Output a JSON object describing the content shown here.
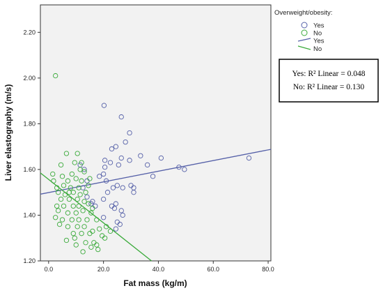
{
  "chart_data": {
    "type": "scatter",
    "xlabel": "Fat mass (kg/m)",
    "ylabel": "Liver elastography (m/s)",
    "xlim": [
      -3,
      81
    ],
    "ylim": [
      1.2,
      2.32
    ],
    "x_ticks": [
      "0.0",
      "20.0",
      "40.0",
      "60.0",
      "80.0"
    ],
    "x_tick_values": [
      0,
      20,
      40,
      60,
      80
    ],
    "y_ticks": [
      "1.20",
      "1.40",
      "1.60",
      "1.80",
      "2.00",
      "2.20"
    ],
    "y_tick_values": [
      1.2,
      1.4,
      1.6,
      1.8,
      2.0,
      2.2
    ],
    "grid": false,
    "legend_placement": "top-right, outside plot",
    "legend": {
      "title": "Overweight/obesity:",
      "entries": [
        {
          "label": "Yes",
          "kind": "marker",
          "color": "#5560a8"
        },
        {
          "label": "No",
          "kind": "marker",
          "color": "#3aaa3a"
        },
        {
          "label": "Yes",
          "kind": "line",
          "color": "#5560a8"
        },
        {
          "label": "No",
          "kind": "line",
          "color": "#3aaa3a"
        }
      ]
    },
    "annotations": [
      "Yes: R² Linear = 0.048",
      "No: R² Linear = 0.130"
    ],
    "series": [
      {
        "name": "Yes",
        "color": "#5560a8",
        "points": [
          [
            20.2,
            1.88
          ],
          [
            26.5,
            1.83
          ],
          [
            29.5,
            1.76
          ],
          [
            28.0,
            1.72
          ],
          [
            24.5,
            1.7
          ],
          [
            23.0,
            1.69
          ],
          [
            41.0,
            1.65
          ],
          [
            33.5,
            1.66
          ],
          [
            26.5,
            1.65
          ],
          [
            20.5,
            1.64
          ],
          [
            22.5,
            1.63
          ],
          [
            25.5,
            1.62
          ],
          [
            29.5,
            1.64
          ],
          [
            36.0,
            1.62
          ],
          [
            47.5,
            1.61
          ],
          [
            49.5,
            1.6
          ],
          [
            73.0,
            1.65
          ],
          [
            38.0,
            1.57
          ],
          [
            20.0,
            1.58
          ],
          [
            18.5,
            1.57
          ],
          [
            25.0,
            1.53
          ],
          [
            23.5,
            1.52
          ],
          [
            27.0,
            1.52
          ],
          [
            31.0,
            1.52
          ],
          [
            30.0,
            1.53
          ],
          [
            31.0,
            1.5
          ],
          [
            21.5,
            1.5
          ],
          [
            20.0,
            1.47
          ],
          [
            15.5,
            1.45
          ],
          [
            17.0,
            1.44
          ],
          [
            24.5,
            1.45
          ],
          [
            23.0,
            1.44
          ],
          [
            24.0,
            1.43
          ],
          [
            26.5,
            1.42
          ],
          [
            27.0,
            1.4
          ],
          [
            20.0,
            1.39
          ],
          [
            25.0,
            1.37
          ],
          [
            26.0,
            1.36
          ],
          [
            24.5,
            1.34
          ],
          [
            13.0,
            1.6
          ],
          [
            11.5,
            1.62
          ],
          [
            12.5,
            1.52
          ],
          [
            14.0,
            1.55
          ],
          [
            20.5,
            1.61
          ],
          [
            21.0,
            1.55
          ],
          [
            14.0,
            1.48
          ],
          [
            16.0,
            1.46
          ]
        ]
      },
      {
        "name": "No",
        "color": "#3aaa3a",
        "points": [
          [
            2.5,
            2.01
          ],
          [
            6.5,
            1.67
          ],
          [
            10.5,
            1.67
          ],
          [
            4.5,
            1.62
          ],
          [
            9.5,
            1.63
          ],
          [
            12.0,
            1.63
          ],
          [
            1.5,
            1.58
          ],
          [
            8.5,
            1.58
          ],
          [
            13.0,
            1.59
          ],
          [
            15.0,
            1.56
          ],
          [
            1.8,
            1.55
          ],
          [
            7.0,
            1.55
          ],
          [
            10.0,
            1.56
          ],
          [
            12.0,
            1.55
          ],
          [
            3.0,
            1.52
          ],
          [
            5.5,
            1.53
          ],
          [
            8.0,
            1.52
          ],
          [
            11.0,
            1.52
          ],
          [
            14.5,
            1.53
          ],
          [
            3.5,
            1.5
          ],
          [
            6.0,
            1.49
          ],
          [
            9.0,
            1.5
          ],
          [
            11.5,
            1.49
          ],
          [
            13.5,
            1.5
          ],
          [
            4.5,
            1.47
          ],
          [
            7.5,
            1.47
          ],
          [
            10.5,
            1.47
          ],
          [
            13.0,
            1.46
          ],
          [
            3.0,
            1.44
          ],
          [
            5.5,
            1.44
          ],
          [
            9.0,
            1.44
          ],
          [
            11.0,
            1.44
          ],
          [
            14.5,
            1.45
          ],
          [
            16.0,
            1.43
          ],
          [
            3.5,
            1.42
          ],
          [
            7.0,
            1.41
          ],
          [
            10.0,
            1.41
          ],
          [
            12.5,
            1.42
          ],
          [
            15.5,
            1.41
          ],
          [
            2.5,
            1.39
          ],
          [
            5.0,
            1.38
          ],
          [
            8.5,
            1.38
          ],
          [
            11.0,
            1.38
          ],
          [
            14.0,
            1.38
          ],
          [
            17.5,
            1.38
          ],
          [
            4.0,
            1.36
          ],
          [
            7.0,
            1.35
          ],
          [
            10.5,
            1.35
          ],
          [
            13.0,
            1.35
          ],
          [
            16.0,
            1.33
          ],
          [
            18.5,
            1.34
          ],
          [
            21.0,
            1.35
          ],
          [
            9.0,
            1.32
          ],
          [
            12.0,
            1.32
          ],
          [
            15.0,
            1.32
          ],
          [
            19.5,
            1.31
          ],
          [
            22.5,
            1.33
          ],
          [
            6.5,
            1.29
          ],
          [
            9.5,
            1.3
          ],
          [
            13.5,
            1.28
          ],
          [
            16.5,
            1.28
          ],
          [
            20.5,
            1.3
          ],
          [
            10.0,
            1.27
          ],
          [
            15.5,
            1.26
          ],
          [
            18.0,
            1.25
          ],
          [
            12.5,
            1.24
          ],
          [
            17.5,
            1.27
          ],
          [
            7.5,
            1.5
          ],
          [
            5.0,
            1.57
          ],
          [
            11.5,
            1.6
          ]
        ]
      }
    ],
    "fit_lines": [
      {
        "name": "Yes",
        "color": "#5560a8",
        "x": [
          -3,
          81
        ],
        "y": [
          1.492,
          1.688
        ]
      },
      {
        "name": "No",
        "color": "#3aaa3a",
        "x": [
          -3,
          37.5
        ],
        "y": [
          1.585,
          1.2
        ]
      }
    ]
  }
}
